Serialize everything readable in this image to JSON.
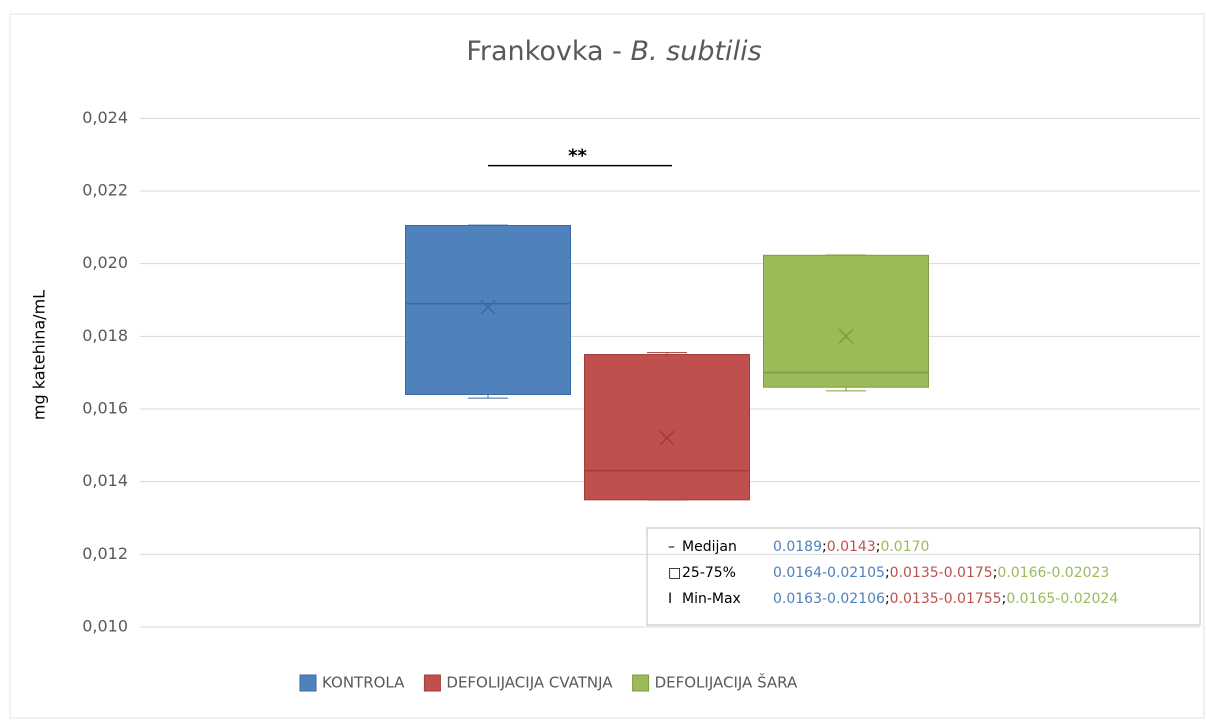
{
  "chart_data": {
    "type": "box",
    "title": {
      "text": "Frankovka -",
      "italic": "B. subtilis"
    },
    "y_label": "mg katehina/mL",
    "ylim": [
      0.01,
      0.025
    ],
    "yticks": [
      {
        "value": 0.01,
        "label": "0,010"
      },
      {
        "value": 0.012,
        "label": "0,012"
      },
      {
        "value": 0.014,
        "label": "0,014"
      },
      {
        "value": 0.016,
        "label": "0,016"
      },
      {
        "value": 0.018,
        "label": "0,018"
      },
      {
        "value": 0.02,
        "label": "0,020"
      },
      {
        "value": 0.022,
        "label": "0,022"
      },
      {
        "value": 0.024,
        "label": "0,024"
      }
    ],
    "grid": true,
    "legend": "bottom",
    "series": [
      {
        "name": "KONTROLA",
        "color": "#4f81bd",
        "edge": "#3a6aa3",
        "min": 0.0163,
        "q1": 0.0164,
        "median": 0.0189,
        "q3": 0.02105,
        "max": 0.02106,
        "mean": 0.0188
      },
      {
        "name": "DEFOLIJACIJA CVATNJA",
        "color": "#c0504d",
        "edge": "#a03e3b",
        "min": 0.0135,
        "q1": 0.0135,
        "median": 0.0143,
        "q3": 0.0175,
        "max": 0.01755,
        "mean": 0.0152
      },
      {
        "name": "DEFOLIJACIJA ŠARA",
        "color": "#9bbb59",
        "edge": "#7e9c43",
        "min": 0.0165,
        "q1": 0.0166,
        "median": 0.017,
        "q3": 0.02023,
        "max": 0.02024,
        "mean": 0.018
      }
    ],
    "annotation": {
      "text": "**",
      "y": 0.0227,
      "from": 0,
      "to": 1
    },
    "stats_table": {
      "separator": ";",
      "rows": [
        {
          "symbol": "–",
          "label": "Medijan",
          "values": [
            "0.0189",
            "0.0143",
            "0.0170"
          ]
        },
        {
          "symbol": "□",
          "label": "25-75%",
          "values": [
            "0.0164-0.02105",
            "0.0135-0.0175",
            "0.0166-0.02023"
          ]
        },
        {
          "symbol": "I",
          "label": "Min-Max",
          "values": [
            "0.0163-0.02106",
            "0.0135-0.01755",
            "0.0165-0.02024"
          ]
        }
      ]
    }
  }
}
